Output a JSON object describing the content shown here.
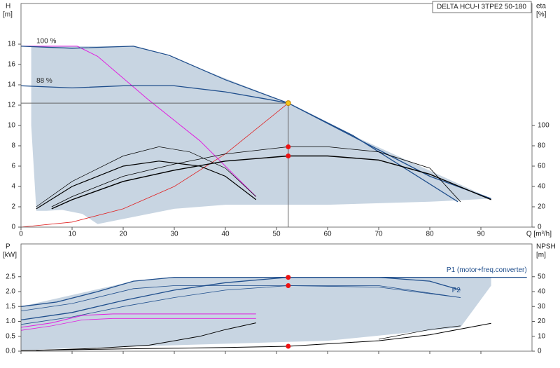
{
  "chart_data": [
    {
      "type": "line",
      "title": "DELTA HCU-I 3TPE2 50-180",
      "ylabel": "H",
      "yunit": "[m]",
      "y2label": "eta",
      "y2unit": "[%]",
      "xlabel": "Q [m³/h]",
      "xlim": [
        0,
        100
      ],
      "ylim": [
        0,
        22
      ],
      "y2lim": [
        0,
        220
      ],
      "xticks": [
        0,
        10,
        20,
        30,
        40,
        50,
        60,
        70,
        80,
        90
      ],
      "yticks": [
        0,
        2,
        4,
        6,
        8,
        10,
        12,
        14,
        16,
        18
      ],
      "y2ticks": [
        0,
        20,
        40,
        60,
        80,
        100
      ],
      "series": [
        {
          "fill": "#c8d5e2",
          "x": [
            2,
            22,
            29,
            52.3,
            65,
            92,
            80,
            60,
            40,
            30,
            15,
            12,
            8,
            5,
            3,
            2
          ],
          "values": [
            17.8,
            17.8,
            16.8,
            12.2,
            9,
            2.8,
            2.5,
            2.2,
            2.2,
            1.8,
            0.3,
            1.3,
            1.7,
            1.6,
            1.6,
            10
          ]
        },
        {
          "color": "#e02020",
          "width": 0.8,
          "x": [
            0,
            10,
            20,
            30,
            40,
            52.3
          ],
          "values": [
            0,
            0.5,
            1.8,
            4,
            7.2,
            12.2
          ]
        },
        {
          "color": "#e020e0",
          "width": 1,
          "x": [
            0,
            11,
            15,
            25,
            35,
            46
          ],
          "values": [
            17.8,
            17.8,
            16.8,
            12.5,
            8.5,
            3
          ]
        },
        {
          "name": "100 %",
          "label_at": "start",
          "color": "#1f4e8c",
          "width": 1.3,
          "x": [
            0,
            10,
            22,
            29,
            40,
            52.3,
            65,
            80,
            92
          ],
          "values": [
            17.8,
            17.6,
            17.8,
            16.9,
            14.5,
            12.2,
            8.9,
            5,
            2.8
          ]
        },
        {
          "name": "88 %",
          "label_at": "start",
          "color": "#1f4e8c",
          "width": 1.3,
          "x": [
            0,
            10,
            20,
            30,
            40,
            48,
            52.3,
            65,
            85.5
          ],
          "values": [
            13.9,
            13.7,
            13.9,
            13.9,
            13.3,
            12.6,
            12.2,
            9,
            2.5
          ]
        },
        {
          "color": "#000000",
          "width": 1.4,
          "axis": "y2",
          "x": [
            6,
            10,
            20,
            30,
            40,
            52.3,
            60,
            70,
            80,
            92
          ],
          "values": [
            18,
            27,
            45,
            56,
            65,
            70,
            70,
            66,
            52,
            27
          ]
        },
        {
          "color": "#000000",
          "width": 0.8,
          "axis": "y2",
          "x": [
            6,
            10,
            20,
            30,
            40,
            52.3,
            60,
            70,
            80,
            86
          ],
          "values": [
            20,
            30,
            50,
            62,
            72,
            79,
            79,
            74,
            58,
            25
          ]
        },
        {
          "color": "#000000",
          "width": 1.2,
          "axis": "y2",
          "x": [
            3,
            10,
            20,
            27,
            35,
            40,
            46
          ],
          "values": [
            18,
            40,
            60,
            65,
            60,
            50,
            27
          ]
        },
        {
          "color": "#000000",
          "width": 0.7,
          "axis": "y2",
          "x": [
            3,
            10,
            20,
            27,
            33,
            40,
            46
          ],
          "values": [
            20,
            45,
            70,
            79,
            74,
            58,
            30
          ]
        }
      ],
      "points": [
        {
          "x": 52.3,
          "y": 12.2,
          "color": "#f5c518",
          "crosshair": true
        },
        {
          "x": 52.3,
          "y": 79,
          "axis": "y2",
          "color": "#ee1111"
        },
        {
          "x": 52.3,
          "y": 70,
          "axis": "y2",
          "color": "#ee1111"
        }
      ]
    },
    {
      "type": "line",
      "ylabel": "P",
      "yunit": "[kW]",
      "y2label": "NPSH",
      "y2unit": "[m]",
      "xlim": [
        0,
        100
      ],
      "ylim": [
        0,
        3.6
      ],
      "y2lim": [
        0,
        72
      ],
      "xticks": [
        0,
        10,
        20,
        30,
        40,
        50,
        60,
        70,
        80,
        90
      ],
      "yticks": [
        {
          "value": 0,
          "label": "0.0"
        },
        {
          "value": 0.5,
          "label": "0.5"
        },
        {
          "value": 1,
          "label": "1.0"
        },
        {
          "value": 1.5,
          "label": "1.5"
        },
        {
          "value": 2,
          "label": "2.0"
        },
        {
          "value": 2.5,
          "label": "2.5"
        }
      ],
      "y2ticks": [
        0,
        10,
        20,
        30,
        40,
        50
      ],
      "series": [
        {
          "fill": "#c8d5e2",
          "x": [
            0,
            22,
            29,
            92,
            92,
            86,
            60,
            30,
            10,
            3,
            0
          ],
          "values": [
            1.5,
            2.35,
            2.48,
            2.48,
            2.2,
            0.8,
            0.35,
            0.2,
            0.1,
            0.05,
            0.05
          ]
        },
        {
          "name": "P1 (motor+freq.converter)",
          "label_at": "end",
          "color": "#1f4e8c",
          "width": 1.3,
          "x": [
            0,
            7,
            15,
            22,
            30,
            52.3,
            99
          ],
          "values": [
            1.5,
            1.65,
            2.0,
            2.35,
            2.48,
            2.48,
            2.48
          ]
        },
        {
          "color": "#1f4e8c",
          "width": 1.3,
          "x": [
            0,
            10,
            20,
            30,
            40,
            52.3,
            70,
            80,
            86
          ],
          "values": [
            1.05,
            1.3,
            1.7,
            2.05,
            2.3,
            2.48,
            2.48,
            2.35,
            2.05
          ]
        },
        {
          "color": "#1f4e8c",
          "width": 0.8,
          "x": [
            0,
            10,
            22,
            30,
            52.3,
            70,
            86
          ],
          "values": [
            1.35,
            1.6,
            2.1,
            2.2,
            2.2,
            2.15,
            1.8
          ]
        },
        {
          "name": "P2",
          "label_at": "end",
          "color": "#1f4e8c",
          "width": 0.8,
          "x": [
            0,
            10,
            20,
            30,
            40,
            52.3,
            70,
            86
          ],
          "values": [
            0.9,
            1.15,
            1.5,
            1.8,
            2.05,
            2.2,
            2.2,
            1.8
          ]
        },
        {
          "color": "#e020e0",
          "width": 1,
          "x": [
            0,
            6,
            12,
            18,
            46
          ],
          "values": [
            0.8,
            0.95,
            1.2,
            1.25,
            1.25
          ]
        },
        {
          "color": "#e020e0",
          "width": 0.8,
          "x": [
            0,
            6,
            12,
            18,
            46
          ],
          "values": [
            0.7,
            0.85,
            1.05,
            1.1,
            1.1
          ]
        },
        {
          "color": "#000000",
          "width": 1,
          "axis": "y2",
          "x": [
            0,
            10,
            20,
            30,
            40,
            52.3,
            70,
            80,
            92
          ],
          "values": [
            0.5,
            1,
            1.5,
            2,
            2.5,
            3.3,
            7,
            11,
            18.7
          ]
        },
        {
          "color": "#000000",
          "width": 1,
          "axis": "y2",
          "x": [
            3,
            15,
            25,
            35,
            40,
            46
          ],
          "values": [
            0.5,
            2,
            4,
            10,
            14.5,
            19
          ]
        },
        {
          "color": "#000000",
          "width": 0.7,
          "axis": "y2",
          "x": [
            70,
            80,
            86
          ],
          "values": [
            8,
            14.5,
            17
          ]
        }
      ],
      "points": [
        {
          "x": 52.3,
          "y": 2.48,
          "color": "#ee1111"
        },
        {
          "x": 52.3,
          "y": 2.2,
          "color": "#ee1111"
        },
        {
          "x": 52.3,
          "y": 3.3,
          "axis": "y2",
          "color": "#ee1111"
        }
      ]
    }
  ]
}
